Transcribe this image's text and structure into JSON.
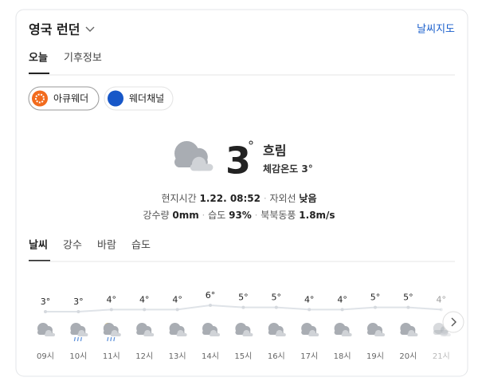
{
  "header": {
    "location": "영국 런던",
    "map_link": "날씨지도"
  },
  "tabs": [
    "오늘",
    "기후정보"
  ],
  "providers": [
    "아큐웨더",
    "웨더채널"
  ],
  "current": {
    "temp": "3",
    "unit": "°",
    "condition": "흐림",
    "feels_label": "체감온도",
    "feels_value": "3°",
    "details": [
      {
        "label": "현지시간",
        "value": "1.22. 08:52"
      },
      {
        "label": "자외선",
        "value": "낮음"
      },
      {
        "label": "강수량",
        "value": "0mm"
      },
      {
        "label": "습도",
        "value": "93%"
      },
      {
        "label": "북북동풍",
        "value": "1.8m/s"
      }
    ]
  },
  "sub_tabs": [
    "날씨",
    "강수",
    "바람",
    "습도"
  ],
  "hourly": {
    "times": [
      "09시",
      "10시",
      "11시",
      "12시",
      "13시",
      "14시",
      "15시",
      "16시",
      "17시",
      "18시",
      "19시",
      "20시",
      "21시"
    ],
    "temps": [
      3,
      3,
      4,
      4,
      4,
      6,
      5,
      5,
      4,
      4,
      5,
      5,
      4
    ],
    "temp_labels": [
      "3°",
      "3°",
      "4°",
      "4°",
      "4°",
      "6°",
      "5°",
      "5°",
      "4°",
      "4°",
      "5°",
      "5°",
      "4°"
    ],
    "icons": [
      "cloud",
      "rain",
      "sun-rain",
      "cloud",
      "cloud",
      "cloud",
      "cloud",
      "cloud",
      "cloud",
      "cloud",
      "cloud",
      "cloud",
      "cloud"
    ]
  }
}
